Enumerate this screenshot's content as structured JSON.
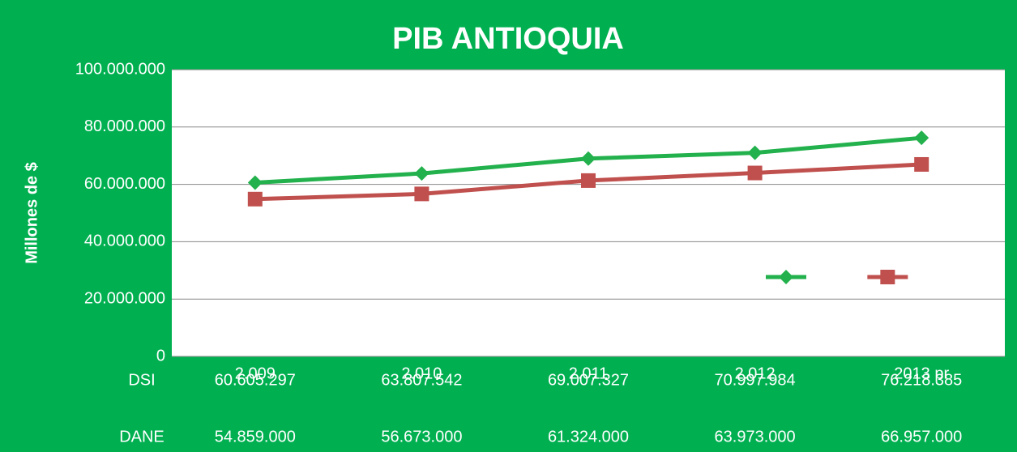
{
  "chart_data": {
    "type": "line",
    "title": "PIB ANTIOQUIA",
    "y_label": "Millones de $",
    "categories": [
      "2.009",
      "2.010",
      "2.011",
      "2.012",
      "2013 pr"
    ],
    "series": [
      {
        "name": "DSI",
        "color": "#22b14c",
        "marker": "diamond",
        "values": [
          60605297,
          63807542,
          69007327,
          70997984,
          76218385
        ],
        "value_labels": [
          "60.605.297",
          "63.807.542",
          "69.007.327",
          "70.997.984",
          "76.218.385"
        ]
      },
      {
        "name": "DANE",
        "color": "#c0504d",
        "marker": "square",
        "values": [
          54859000,
          56673000,
          61324000,
          63973000,
          66957000
        ],
        "value_labels": [
          "54.859.000",
          "56.673.000",
          "61.324.000",
          "63.973.000",
          "66.957.000"
        ]
      }
    ],
    "ylim": [
      0,
      100000000
    ],
    "yticks": [
      0,
      {
        "value": 20000000,
        "label": "20.000.000"
      },
      {
        "value": 40000000,
        "label": "40.000.000"
      },
      {
        "value": 60000000,
        "label": "60.000.000"
      },
      {
        "value": 80000000,
        "label": "80.000.000"
      },
      {
        "value": 100000000,
        "label": "100.000.000"
      }
    ],
    "grid": true,
    "legend": "center-right"
  }
}
